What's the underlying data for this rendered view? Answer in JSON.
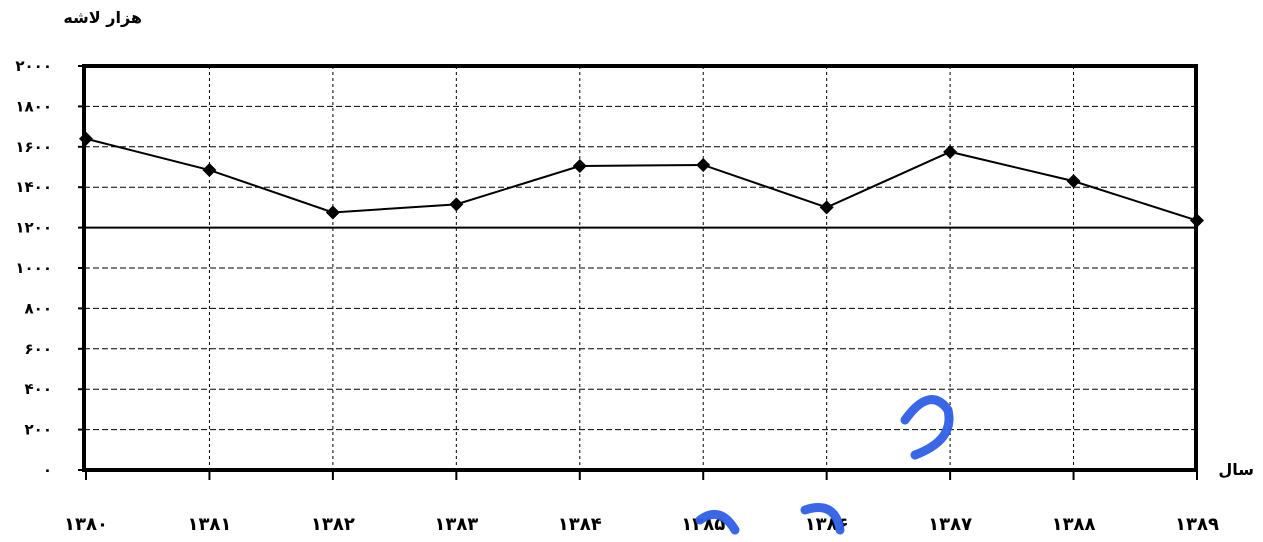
{
  "chart_data": {
    "type": "line",
    "ylabel": "هزار لاشه",
    "xlabel": "سال",
    "categories": [
      "۱۳۸۰",
      "۱۳۸۱",
      "۱۳۸۲",
      "۱۳۸۳",
      "۱۳۸۴",
      "۱۳۸۵",
      "۱۳۸۶",
      "۱۳۸۷",
      "۱۳۸۸",
      "۱۳۸۹"
    ],
    "series": [
      {
        "values": [
          1640,
          1485,
          1275,
          1315,
          1505,
          1510,
          1300,
          1575,
          1430,
          1235
        ]
      }
    ],
    "ylim": [
      0,
      2000
    ],
    "y_ticks": [
      0,
      200,
      400,
      600,
      800,
      1000,
      1200,
      1400,
      1600,
      1800,
      2000
    ],
    "y_tick_labels": [
      "۰",
      "۲۰۰",
      "۴۰۰",
      "۶۰۰",
      "۸۰۰",
      "۱۰۰۰",
      "۱۲۰۰",
      "۱۴۰۰",
      "۱۶۰۰",
      "۱۸۰۰",
      "۲۰۰۰"
    ],
    "grid": true,
    "legend": "none",
    "line_color": "#000000",
    "marker": "diamond"
  }
}
